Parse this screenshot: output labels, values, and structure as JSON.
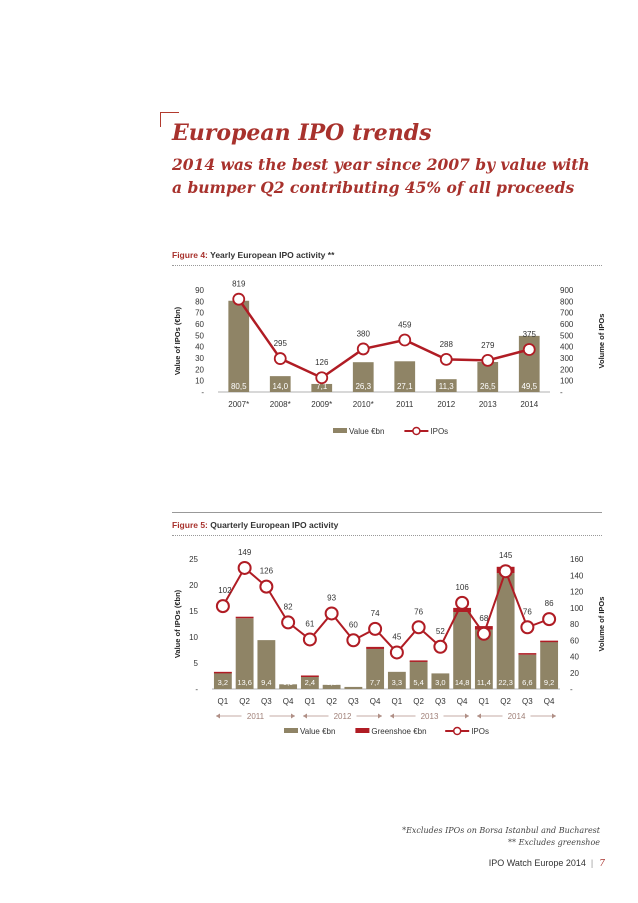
{
  "page": {
    "title": "European IPO trends",
    "subtitle_lines": [
      "2014 was the best year since 2007 by value with",
      "a bumper Q2 contributing 45% of all proceeds"
    ],
    "footnote_1": "*Excludes IPOs on Borsa Istanbul and Bucharest",
    "footnote_2": "** Excludes greenshoe",
    "footer_text": "IPO Watch Europe 2014",
    "footer_sep": "|",
    "page_number": "7"
  },
  "colors": {
    "accent": "#a8322d",
    "bar": "#8f8466",
    "greenshoe": "#b01c24",
    "line": "#b01c24"
  },
  "chart_data": [
    {
      "type": "bar",
      "figure_number": "Figure 4:",
      "title": "Yearly European IPO activity **",
      "categories": [
        "2007*",
        "2008*",
        "2009*",
        "2010*",
        "2011",
        "2012",
        "2013",
        "2014"
      ],
      "series": [
        {
          "name": "Value €bn",
          "kind": "bar",
          "axis": "left",
          "values": [
            80.5,
            14.0,
            7.1,
            26.3,
            27.1,
            11.3,
            26.5,
            49.5
          ],
          "labels": [
            "80,5",
            "14,0",
            "7,1",
            "26,3",
            "27,1",
            "11,3",
            "26,5",
            "49,5"
          ]
        },
        {
          "name": "IPOs",
          "kind": "line",
          "axis": "right",
          "values": [
            819,
            295,
            126,
            380,
            459,
            288,
            279,
            375
          ],
          "labels": [
            "819",
            "295",
            "126",
            "380",
            "459",
            "288",
            "279",
            "375"
          ]
        }
      ],
      "ylabel": "Value of IPOs (€bn)",
      "y2label": "Volume of IPOs",
      "ylim": [
        0,
        90
      ],
      "y2lim": [
        0,
        900
      ],
      "yticks": [
        "-",
        "10",
        "20",
        "30",
        "40",
        "50",
        "60",
        "70",
        "80",
        "90"
      ],
      "y2ticks": [
        "-",
        "100",
        "200",
        "300",
        "400",
        "500",
        "600",
        "700",
        "800",
        "900"
      ],
      "legend_position": "bottom"
    },
    {
      "type": "bar",
      "figure_number": "Figure 5:",
      "title": "Quarterly European IPO activity",
      "categories": [
        "Q1",
        "Q2",
        "Q3",
        "Q4",
        "Q1",
        "Q2",
        "Q3",
        "Q4",
        "Q1",
        "Q2",
        "Q3",
        "Q4",
        "Q1",
        "Q2",
        "Q3",
        "Q4"
      ],
      "groups": [
        {
          "label": "2011",
          "span": [
            0,
            3
          ]
        },
        {
          "label": "2012",
          "span": [
            4,
            7
          ]
        },
        {
          "label": "2013",
          "span": [
            8,
            11
          ]
        },
        {
          "label": "2014",
          "span": [
            12,
            15
          ]
        }
      ],
      "series": [
        {
          "name": "Value €bn",
          "kind": "bar",
          "axis": "left",
          "values": [
            3.2,
            13.6,
            9.4,
            0.9,
            2.4,
            0.8,
            0.4,
            7.7,
            3.3,
            5.4,
            3.0,
            14.8,
            11.4,
            22.3,
            6.6,
            9.2
          ],
          "labels": [
            "3,2",
            "13,6",
            "9,4",
            "0,9",
            "2,4",
            "0,8",
            "0,4",
            "7,7",
            "3,3",
            "5,4",
            "3,0",
            "14,8",
            "11,4",
            "22,3",
            "6,6",
            "9,2"
          ]
        },
        {
          "name": "Greenshoe €bn",
          "kind": "bar",
          "axis": "left",
          "stacked": true,
          "values": [
            0.1,
            0.3,
            0,
            0,
            0.2,
            0,
            0,
            0.4,
            0,
            0.1,
            0,
            0.8,
            0.7,
            1.2,
            0.3,
            0.1
          ]
        },
        {
          "name": "IPOs",
          "kind": "line",
          "axis": "right",
          "values": [
            102,
            149,
            126,
            82,
            61,
            93,
            60,
            74,
            45,
            76,
            52,
            106,
            68,
            145,
            76,
            86
          ],
          "labels": [
            "102",
            "149",
            "126",
            "82",
            "61",
            "93",
            "60",
            "74",
            "45",
            "76",
            "52",
            "106",
            "68",
            "145",
            "76",
            "86"
          ]
        }
      ],
      "ylabel": "Value of IPOs (€bn)",
      "y2label": "Volume of IPOs",
      "ylim": [
        0,
        25
      ],
      "y2lim": [
        0,
        160
      ],
      "yticks": [
        "-",
        "5",
        "10",
        "15",
        "20",
        "25"
      ],
      "y2ticks": [
        "-",
        "20",
        "40",
        "60",
        "80",
        "100",
        "120",
        "140",
        "160"
      ],
      "legend_position": "bottom"
    }
  ]
}
